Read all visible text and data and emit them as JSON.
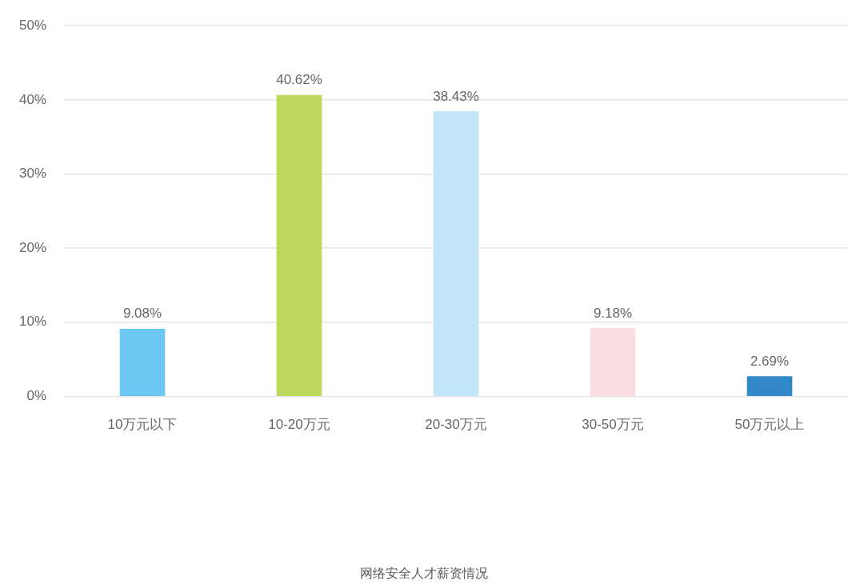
{
  "chart_data": {
    "type": "bar",
    "title": "网络安全人才薪资情况",
    "categories": [
      "10万元以下",
      "10-20万元",
      "20-30万元",
      "30-50万元",
      "50万元以上"
    ],
    "values": [
      9.08,
      40.62,
      38.43,
      9.18,
      2.69
    ],
    "colors": [
      "#6cc8f3",
      "#bcd65e",
      "#c2e5f7",
      "#f9dde3",
      "#3388c9"
    ],
    "value_labels": [
      "9.08%",
      "40.62%",
      "38.43%",
      "9.18%",
      "2.69%"
    ],
    "ylim": [
      0,
      50
    ],
    "yticks": [
      {
        "value": 0,
        "label": "0%"
      },
      {
        "value": 10,
        "label": "10%"
      },
      {
        "value": 20,
        "label": "20%"
      },
      {
        "value": 30,
        "label": "30%"
      },
      {
        "value": 40,
        "label": "40%"
      },
      {
        "value": 50,
        "label": "50%"
      }
    ],
    "grid": "y"
  }
}
